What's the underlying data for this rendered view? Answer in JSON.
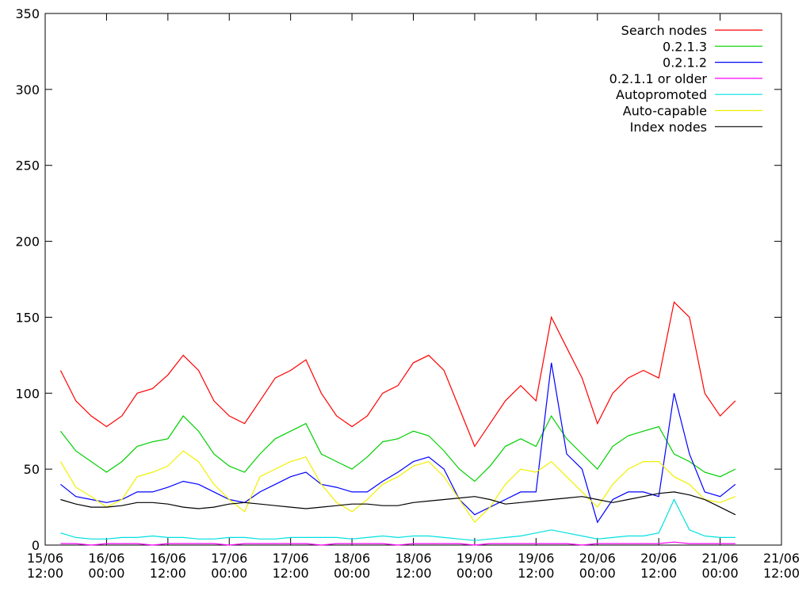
{
  "chart_data": {
    "type": "line",
    "x": [
      "15/06 15:00",
      "15/06 18:00",
      "15/06 21:00",
      "16/06 00:00",
      "16/06 03:00",
      "16/06 06:00",
      "16/06 09:00",
      "16/06 12:00",
      "16/06 15:00",
      "16/06 18:00",
      "16/06 21:00",
      "17/06 00:00",
      "17/06 03:00",
      "17/06 06:00",
      "17/06 09:00",
      "17/06 12:00",
      "17/06 15:00",
      "17/06 18:00",
      "17/06 21:00",
      "18/06 00:00",
      "18/06 03:00",
      "18/06 06:00",
      "18/06 09:00",
      "18/06 12:00",
      "18/06 15:00",
      "18/06 18:00",
      "18/06 21:00",
      "19/06 00:00",
      "19/06 03:00",
      "19/06 06:00",
      "19/06 09:00",
      "19/06 12:00",
      "19/06 15:00",
      "19/06 18:00",
      "19/06 21:00",
      "20/06 00:00",
      "20/06 03:00",
      "20/06 06:00",
      "20/06 09:00",
      "20/06 12:00",
      "20/06 15:00",
      "20/06 18:00",
      "20/06 21:00",
      "21/06 00:00",
      "21/06 03:00"
    ],
    "series": [
      {
        "name": "Search nodes",
        "color": "#ff0000",
        "values": [
          115,
          95,
          85,
          78,
          85,
          100,
          103,
          112,
          125,
          115,
          95,
          85,
          80,
          95,
          110,
          115,
          122,
          100,
          85,
          78,
          85,
          100,
          105,
          120,
          125,
          115,
          90,
          65,
          80,
          95,
          105,
          95,
          150,
          130,
          110,
          80,
          100,
          110,
          115,
          110,
          160,
          150,
          100,
          85,
          95
        ]
      },
      {
        "name": "0.2.1.3",
        "color": "#00d000",
        "values": [
          75,
          62,
          55,
          48,
          55,
          65,
          68,
          70,
          85,
          75,
          60,
          52,
          48,
          60,
          70,
          75,
          80,
          60,
          55,
          50,
          58,
          68,
          70,
          75,
          72,
          62,
          50,
          42,
          52,
          65,
          70,
          65,
          85,
          70,
          60,
          50,
          65,
          72,
          75,
          78,
          60,
          55,
          48,
          45,
          50
        ]
      },
      {
        "name": "0.2.1.2",
        "color": "#0000ff",
        "values": [
          40,
          32,
          30,
          28,
          30,
          35,
          35,
          38,
          42,
          40,
          35,
          30,
          28,
          35,
          40,
          45,
          48,
          40,
          38,
          35,
          35,
          42,
          48,
          55,
          58,
          50,
          30,
          20,
          25,
          30,
          35,
          35,
          120,
          60,
          50,
          15,
          30,
          35,
          35,
          32,
          100,
          60,
          35,
          32,
          40
        ]
      },
      {
        "name": "0.2.1.1 or older",
        "color": "#ff00ff",
        "values": [
          1,
          1,
          0,
          1,
          1,
          1,
          0,
          1,
          1,
          1,
          1,
          0,
          1,
          1,
          1,
          1,
          1,
          0,
          1,
          1,
          1,
          1,
          0,
          1,
          1,
          1,
          1,
          0,
          1,
          1,
          1,
          1,
          1,
          1,
          0,
          1,
          1,
          1,
          1,
          1,
          2,
          1,
          1,
          1,
          1
        ]
      },
      {
        "name": "Autopromoted",
        "color": "#00e0e0",
        "values": [
          8,
          5,
          4,
          4,
          5,
          5,
          6,
          5,
          5,
          4,
          4,
          5,
          5,
          4,
          4,
          5,
          5,
          5,
          5,
          4,
          5,
          6,
          5,
          6,
          6,
          5,
          4,
          3,
          4,
          5,
          6,
          8,
          10,
          8,
          6,
          4,
          5,
          6,
          6,
          8,
          30,
          10,
          6,
          5,
          5
        ]
      },
      {
        "name": "Auto-capable",
        "color": "#f0f000",
        "values": [
          55,
          38,
          32,
          25,
          30,
          45,
          48,
          52,
          62,
          55,
          40,
          30,
          22,
          45,
          50,
          55,
          58,
          40,
          28,
          22,
          30,
          40,
          45,
          52,
          55,
          45,
          30,
          15,
          25,
          40,
          50,
          48,
          55,
          45,
          35,
          25,
          40,
          50,
          55,
          55,
          45,
          40,
          30,
          28,
          32
        ]
      },
      {
        "name": "Index nodes",
        "color": "#000000",
        "values": [
          30,
          27,
          25,
          25,
          26,
          28,
          28,
          27,
          25,
          24,
          25,
          27,
          28,
          27,
          26,
          25,
          24,
          25,
          26,
          27,
          27,
          26,
          26,
          28,
          29,
          30,
          31,
          32,
          30,
          27,
          28,
          29,
          30,
          31,
          32,
          30,
          28,
          30,
          32,
          34,
          35,
          33,
          30,
          25,
          20
        ]
      }
    ],
    "xlim": [
      [
        "15/06",
        "12:00"
      ],
      [
        "21/06",
        "12:00"
      ]
    ],
    "xticks": [
      [
        "15/06",
        "12:00"
      ],
      [
        "16/06",
        "00:00"
      ],
      [
        "16/06",
        "12:00"
      ],
      [
        "17/06",
        "00:00"
      ],
      [
        "17/06",
        "12:00"
      ],
      [
        "18/06",
        "00:00"
      ],
      [
        "18/06",
        "12:00"
      ],
      [
        "19/06",
        "00:00"
      ],
      [
        "19/06",
        "12:00"
      ],
      [
        "20/06",
        "00:00"
      ],
      [
        "20/06",
        "12:00"
      ],
      [
        "21/06",
        "00:00"
      ],
      [
        "21/06",
        "12:00"
      ]
    ],
    "ylim": [
      0,
      350
    ],
    "yticks": [
      0,
      50,
      100,
      150,
      200,
      250,
      300,
      350
    ],
    "legend": "top-right"
  }
}
